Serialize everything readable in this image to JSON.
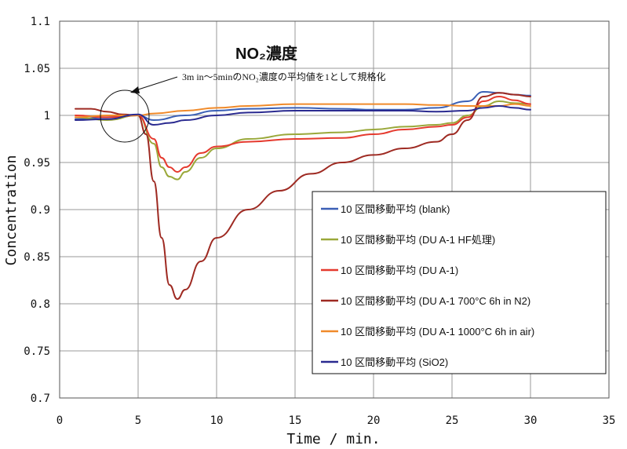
{
  "chart_data": {
    "type": "line",
    "title": "NO₂濃度",
    "annotation": "3m in～5minのNO₂濃度の平均値を1として規格化",
    "xlabel": "Time / min.",
    "ylabel": "Concentration",
    "xlim": [
      0,
      35
    ],
    "ylim": [
      0.7,
      1.1
    ],
    "xticks": [
      0,
      5,
      10,
      15,
      20,
      25,
      30,
      35
    ],
    "yticks": [
      0.7,
      0.75,
      0.8,
      0.85,
      0.9,
      0.95,
      1,
      1.05,
      1.1
    ],
    "xtick_labels": [
      "0",
      "5",
      "10",
      "15",
      "20",
      "25",
      "30",
      "35"
    ],
    "ytick_labels": [
      "0.7",
      "0.75",
      "0.8",
      "0.85",
      "0.9",
      "0.95",
      "1",
      "1.05",
      "1.1"
    ],
    "grid": true,
    "legend_position": "right",
    "series": [
      {
        "name": "10 区間移動平均 (blank)",
        "color": "#3a5fb5",
        "x": [
          1,
          3,
          5,
          6,
          8,
          10,
          12,
          15,
          18,
          20,
          22,
          24,
          26,
          27,
          28,
          29,
          30
        ],
        "y": [
          0.996,
          0.998,
          1.0,
          0.995,
          1.0,
          1.005,
          1.007,
          1.008,
          1.007,
          1.006,
          1.006,
          1.008,
          1.015,
          1.025,
          1.024,
          1.022,
          1.021
        ]
      },
      {
        "name": "10 区間移動平均 (DU A-1 HF処理)",
        "color": "#9aa83a",
        "x": [
          1,
          3,
          5,
          6,
          6.5,
          7,
          7.5,
          8,
          9,
          10,
          12,
          15,
          18,
          20,
          22,
          24,
          25,
          26,
          27,
          28,
          29,
          30
        ],
        "y": [
          0.998,
          0.995,
          1.0,
          0.97,
          0.945,
          0.935,
          0.932,
          0.94,
          0.955,
          0.965,
          0.975,
          0.98,
          0.982,
          0.985,
          0.988,
          0.99,
          0.992,
          1.0,
          1.01,
          1.015,
          1.013,
          1.012
        ]
      },
      {
        "name": "10 区間移動平均 (DU A-1)",
        "color": "#e53a2e",
        "x": [
          1,
          3,
          5,
          6,
          6.5,
          7,
          7.5,
          8,
          9,
          10,
          12,
          15,
          18,
          20,
          22,
          24,
          25,
          26,
          27,
          28,
          29,
          30
        ],
        "y": [
          1.0,
          0.998,
          1.0,
          0.975,
          0.955,
          0.945,
          0.94,
          0.945,
          0.96,
          0.967,
          0.972,
          0.975,
          0.976,
          0.98,
          0.985,
          0.988,
          0.99,
          0.998,
          1.015,
          1.02,
          1.016,
          1.012
        ]
      },
      {
        "name": "10 区間移動平均 (DU A-1 700°C 6h in N2)",
        "color": "#9e2a22",
        "x": [
          1,
          2,
          3,
          4,
          5,
          5.5,
          6,
          6.5,
          7,
          7.5,
          8,
          9,
          10,
          12,
          14,
          16,
          18,
          20,
          22,
          24,
          25,
          26,
          27,
          28,
          29,
          30
        ],
        "y": [
          1.007,
          1.007,
          1.004,
          1.001,
          1.0,
          0.98,
          0.93,
          0.87,
          0.82,
          0.805,
          0.815,
          0.845,
          0.87,
          0.9,
          0.92,
          0.938,
          0.95,
          0.958,
          0.965,
          0.972,
          0.98,
          0.995,
          1.02,
          1.024,
          1.022,
          1.02
        ]
      },
      {
        "name": "10 区間移動平均 (DU A-1 1000°C  6h in air)",
        "color": "#f08a2a",
        "x": [
          1,
          3,
          5,
          6,
          8,
          10,
          12,
          15,
          18,
          20,
          22,
          24,
          26,
          27,
          28,
          29,
          30
        ],
        "y": [
          0.998,
          1.0,
          1.0,
          1.002,
          1.005,
          1.008,
          1.01,
          1.012,
          1.012,
          1.012,
          1.012,
          1.011,
          1.01,
          1.01,
          1.01,
          1.012,
          1.01
        ]
      },
      {
        "name": "10 区間移動平均 (SiO2)",
        "color": "#2a2a90",
        "x": [
          1,
          3,
          5,
          6,
          7,
          8,
          10,
          12,
          15,
          18,
          20,
          22,
          24,
          26,
          27,
          28,
          29,
          30
        ],
        "y": [
          0.995,
          0.996,
          1.001,
          0.99,
          0.992,
          0.995,
          1.0,
          1.003,
          1.005,
          1.005,
          1.005,
          1.005,
          1.004,
          1.005,
          1.008,
          1.01,
          1.008,
          1.006
        ]
      }
    ]
  }
}
